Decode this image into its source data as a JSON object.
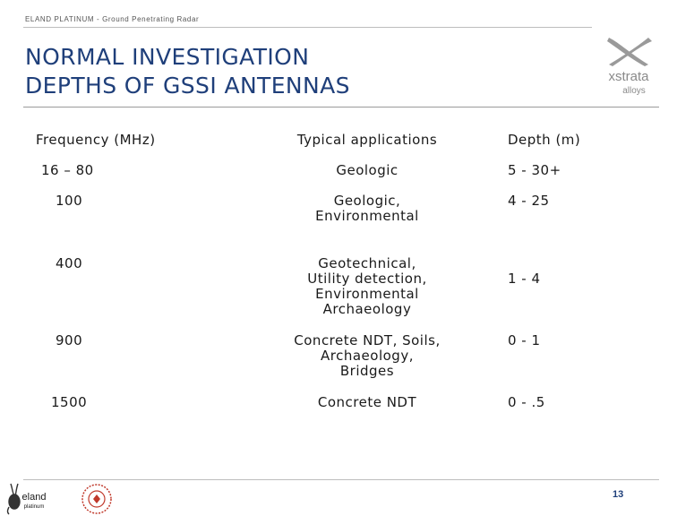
{
  "header": {
    "text": "ELAND PLATINUM - Ground Penetrating Radar"
  },
  "title": {
    "line1": "NORMAL INVESTIGATION",
    "line2": "DEPTHS OF GSSI ANTENNAS"
  },
  "logo": {
    "brand": "xstrata",
    "subbrand": "alloys",
    "icon": "xstrata-x-logo"
  },
  "table": {
    "headers": [
      "Frequency (MHz)",
      "Typical applications",
      "Depth (m)"
    ],
    "rows": [
      {
        "frequency": "16 – 80",
        "applications": [
          "Geologic"
        ],
        "depth": "5 - 30+"
      },
      {
        "frequency": "100",
        "applications": [
          "Geologic,",
          "Environmental"
        ],
        "depth": "4 - 25"
      },
      {
        "frequency": "400",
        "applications": [
          "Geotechnical,",
          "Utility detection,",
          "Environmental",
          "Archaeology"
        ],
        "depth": "1 - 4"
      },
      {
        "frequency": "900",
        "applications": [
          "Concrete NDT, Soils,",
          "Archaeology,",
          "Bridges"
        ],
        "depth": "0 - 1"
      },
      {
        "frequency": "1500",
        "applications": [
          "Concrete NDT"
        ],
        "depth": "0 - .5"
      }
    ]
  },
  "footer": {
    "page_number": "13",
    "left_logo_text": [
      "eland",
      "platinum"
    ],
    "seal_icon": "red-seal-logo"
  },
  "colors": {
    "title": "#1f3f7a",
    "page_number": "#1f3f7a",
    "logo_gray": "#8a8a8a",
    "seal_red": "#c0392b"
  }
}
